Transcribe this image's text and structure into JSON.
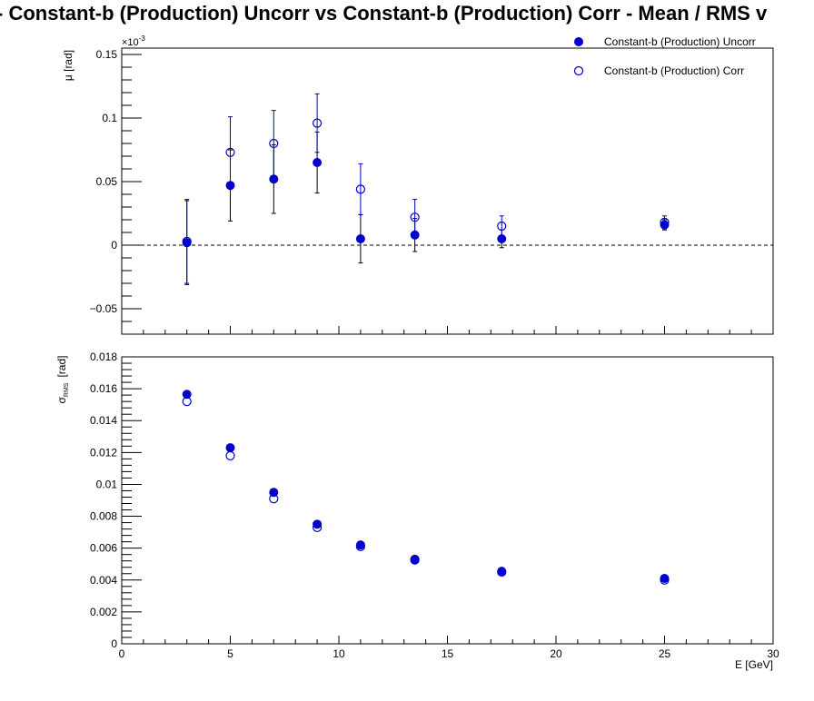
{
  "title": "-  Constant-b (Production) Uncorr vs Constant-b (Production) Corr  -  Mean / RMS v",
  "colors": {
    "series": "#0000cc",
    "axis": "#000000",
    "zero_line": "#000000"
  },
  "chart_data": [
    {
      "type": "scatter",
      "panel": "top",
      "ylabel": "μ  [rad]",
      "yexponent": "×10",
      "yexponent_power": "-3",
      "xlim": [
        0,
        30
      ],
      "ylim": [
        -0.07,
        0.155
      ],
      "yticks": [
        -0.05,
        0,
        0.05,
        0.1,
        0.15
      ],
      "ytick_labels": [
        "−0.05",
        "0",
        "0.05",
        "0.1",
        "0.15"
      ],
      "zero_line": true,
      "legend": {
        "placement": "top-right",
        "entries": [
          {
            "label": "Constant-b (Production) Uncorr",
            "marker": "filled-circle"
          },
          {
            "label": "Constant-b (Production) Corr",
            "marker": "open-circle"
          }
        ]
      },
      "series": [
        {
          "name": "Constant-b (Production) Uncorr",
          "marker": "filled",
          "x": [
            3,
            5,
            7,
            9,
            11,
            13.5,
            17.5,
            25
          ],
          "y": [
            0.002,
            0.047,
            0.052,
            0.065,
            0.005,
            0.008,
            0.005,
            0.016
          ],
          "yerr": [
            0.033,
            0.028,
            0.027,
            0.024,
            0.019,
            0.013,
            0.007,
            0.004
          ]
        },
        {
          "name": "Constant-b (Production) Corr",
          "marker": "open",
          "x": [
            3,
            5,
            7,
            9,
            11,
            13.5,
            17.5,
            25
          ],
          "y": [
            0.003,
            0.073,
            0.08,
            0.096,
            0.044,
            0.022,
            0.015,
            0.018
          ],
          "yerr": [
            0.033,
            0.028,
            0.026,
            0.023,
            0.02,
            0.014,
            0.008,
            0.005
          ]
        }
      ]
    },
    {
      "type": "scatter",
      "panel": "bottom",
      "ylabel": "σ",
      "ylabel_sub": "RMS",
      "ylabel_unit": "[rad]",
      "xlabel": "E  [GeV]",
      "xlim": [
        0,
        30
      ],
      "ylim": [
        0,
        0.018
      ],
      "xticks": [
        0,
        5,
        10,
        15,
        20,
        25,
        30
      ],
      "xtick_labels": [
        "0",
        "5",
        "10",
        "15",
        "20",
        "25",
        "30"
      ],
      "yticks": [
        0,
        0.002,
        0.004,
        0.006,
        0.008,
        0.01,
        0.012,
        0.014,
        0.016,
        0.018
      ],
      "ytick_labels": [
        "0",
        "0.002",
        "0.004",
        "0.006",
        "0.008",
        "0.01",
        "0.012",
        "0.014",
        "0.016",
        "0.018"
      ],
      "series": [
        {
          "name": "Constant-b (Production) Uncorr",
          "marker": "filled",
          "x": [
            3,
            5,
            7,
            9,
            11,
            13.5,
            17.5,
            25
          ],
          "y": [
            0.01565,
            0.0123,
            0.0095,
            0.0075,
            0.0062,
            0.00525,
            0.00455,
            0.0041
          ]
        },
        {
          "name": "Constant-b (Production) Corr",
          "marker": "open",
          "x": [
            3,
            5,
            7,
            9,
            11,
            13.5,
            17.5,
            25
          ],
          "y": [
            0.0152,
            0.0118,
            0.0091,
            0.0073,
            0.0061,
            0.0053,
            0.0045,
            0.004
          ]
        }
      ]
    }
  ]
}
